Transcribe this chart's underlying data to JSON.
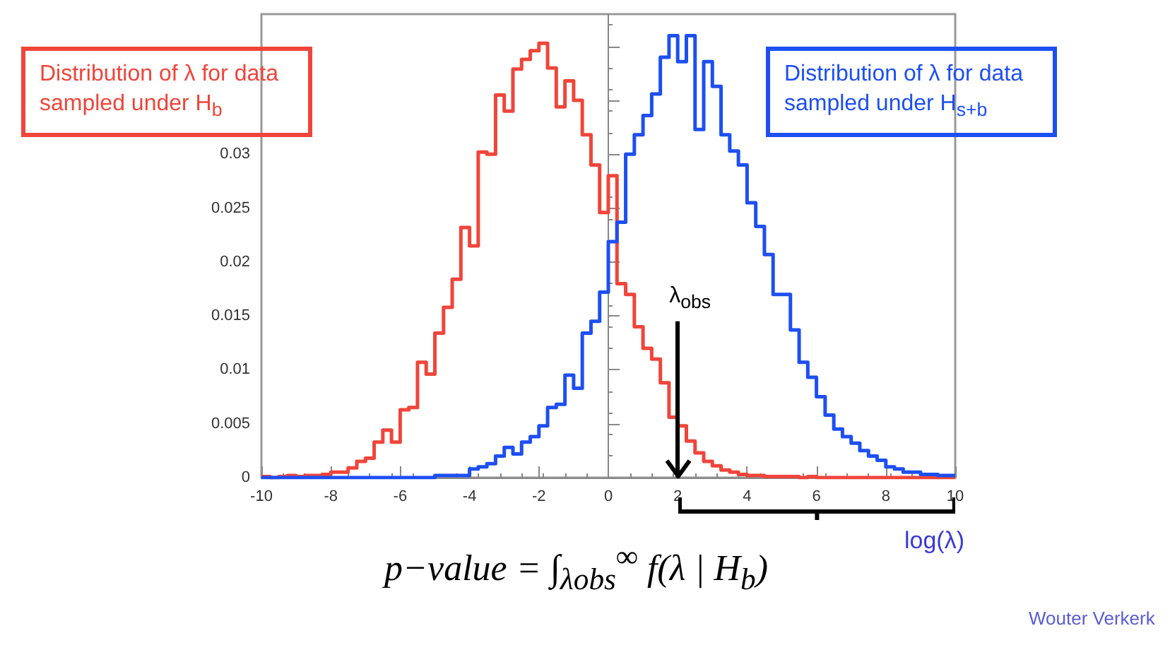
{
  "chart_data": {
    "type": "histogram",
    "bins": [
      -10,
      -9.75,
      -9.5,
      -9.25,
      -9,
      -8.75,
      -8.5,
      -8.25,
      -8,
      -7.75,
      -7.5,
      -7.25,
      -7,
      -6.75,
      -6.5,
      -6.25,
      -6,
      -5.75,
      -5.5,
      -5.25,
      -5,
      -4.75,
      -4.5,
      -4.25,
      -4,
      -3.75,
      -3.5,
      -3.25,
      -3,
      -2.75,
      -2.5,
      -2.25,
      -2,
      -1.75,
      -1.5,
      -1.25,
      -1,
      -0.75,
      -0.5,
      -0.25,
      0,
      0.25,
      0.5,
      0.75,
      1,
      1.25,
      1.5,
      1.75,
      2,
      2.25,
      2.5,
      2.75,
      3,
      3.25,
      3.5,
      3.75,
      4,
      4.25,
      4.5,
      4.75,
      5,
      5.25,
      5.5,
      5.75,
      6,
      6.25,
      6.5,
      6.75,
      7,
      7.25,
      7.5,
      7.75,
      8,
      8.25,
      8.5,
      8.75,
      9,
      9.25,
      9.5,
      9.75,
      10
    ],
    "series": [
      {
        "name": "Distribution of λ for data sampled under H$_{b}$",
        "color": "#f0453a",
        "values": [
          0.0001,
          0,
          0.0001,
          0.0002,
          0.0001,
          0.0002,
          0.0002,
          0.0003,
          0.0005,
          0.0005,
          0.0009,
          0.0015,
          0.0018,
          0.0033,
          0.0044,
          0.0033,
          0.0063,
          0.0065,
          0.0107,
          0.0096,
          0.0134,
          0.0158,
          0.0184,
          0.0232,
          0.0215,
          0.0302,
          0.03,
          0.0355,
          0.034,
          0.0379,
          0.0388,
          0.0396,
          0.0403,
          0.038,
          0.0344,
          0.0368,
          0.035,
          0.0318,
          0.029,
          0.0246,
          0.028,
          0.018,
          0.017,
          0.014,
          0.012,
          0.011,
          0.0088,
          0.0056,
          0.0048,
          0.0034,
          0.0023,
          0.0015,
          0.0011,
          0.0007,
          0.0005,
          0.0003,
          0.0002,
          0.0002,
          0.0001,
          0.0001,
          0.0001,
          0.0001,
          0,
          0.0001,
          0,
          0,
          0,
          0,
          0,
          0,
          0,
          0,
          0,
          0,
          0,
          0,
          0,
          0,
          0,
          0
        ]
      },
      {
        "name": "Distribution of λ for data sampled under H$_{s+b}$",
        "color": "#1d4ff2",
        "values": [
          0,
          0,
          0,
          0,
          0,
          0,
          0,
          0,
          0,
          0,
          0,
          0,
          0,
          0,
          0,
          0,
          0,
          0,
          0,
          0,
          0.0002,
          0.0002,
          0.0002,
          0.0002,
          0.0008,
          0.001,
          0.0013,
          0.002,
          0.0028,
          0.0022,
          0.0033,
          0.0038,
          0.0048,
          0.0065,
          0.0068,
          0.0095,
          0.0083,
          0.0134,
          0.0145,
          0.0172,
          0.0219,
          0.0237,
          0.03,
          0.0318,
          0.0336,
          0.0356,
          0.039,
          0.041,
          0.0386,
          0.041,
          0.0323,
          0.0386,
          0.0363,
          0.0318,
          0.0303,
          0.029,
          0.0255,
          0.0233,
          0.0207,
          0.017,
          0.017,
          0.0137,
          0.0107,
          0.0093,
          0.0075,
          0.0058,
          0.0045,
          0.0038,
          0.0032,
          0.0025,
          0.002,
          0.0016,
          0.001,
          0.0008,
          0.0005,
          0.0005,
          0.0003,
          0.0003,
          0.0002,
          0.0002
        ]
      }
    ],
    "xlim": [
      -10,
      10
    ],
    "xticks": [
      -10,
      -8,
      -6,
      -4,
      -2,
      0,
      2,
      4,
      6,
      8,
      10
    ],
    "ylim": [
      0,
      0.043
    ],
    "yticks": [
      0,
      0.005,
      0.01,
      0.015,
      0.02,
      0.025,
      0.03,
      {
        "value": 0.035,
        "label": null
      },
      {
        "value": 0.04,
        "label": null
      }
    ],
    "xlabel": "log(λ)",
    "ref_lines": [
      {
        "axis": "x",
        "value": 2,
        "label": "λ$_{obs}$",
        "color": "#000000"
      }
    ],
    "annotations": [
      "p−value = ∫$_{λobs}$$^{∞}$ f(λ | H$_{b}$)",
      "Wouter Verkerk"
    ]
  }
}
